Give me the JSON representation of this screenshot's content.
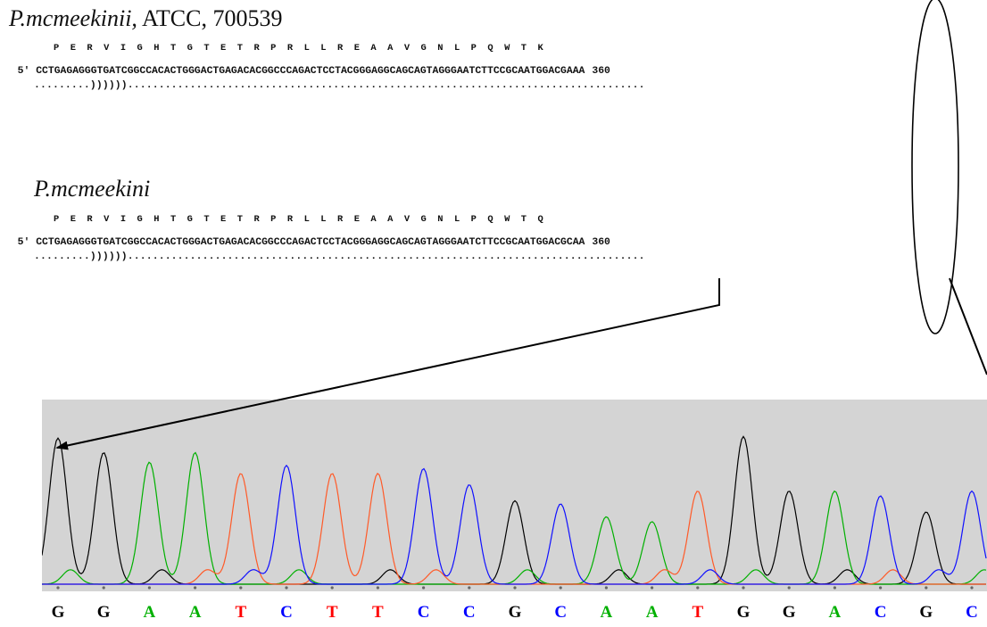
{
  "panel1": {
    "species": "P.mcmeekinii,",
    "strain": "ATCC, 700539",
    "amino_acids": "P  E  R  V  I  G  H  T  G  T  E  T  R  P  R  L  L  R  E  A  A  V  G  N  L  P  Q  W  T  K",
    "prefix": "5'",
    "sequence": "CCTGAGAGGGTGATCGGCCACACTGGGACTGAGACACGGCCCAGACTCCTACGGGAGGCAGCAGTAGGGAATCTTCCGCAATGGACGAAA",
    "position": "360",
    "structure": ".........))))))..................................................................................."
  },
  "panel2": {
    "species": "P.mcmeekini",
    "amino_acids": "P  E  R  V  I  G  H  T  G  T  E  T  R  P  R  L  L  R  E  A  A  V  G  N  L  P  Q  W  T  Q",
    "prefix": "5'",
    "sequence": "CCTGAGAGGGTGATCGGCCACACTGGGACTGAGACACGGCCCAGACTCCTACGGGAGGCAGCAGTAGGGAATCTTCCGCAATGGACGCAA",
    "position": "360",
    "structure": ".........))))))..................................................................................."
  },
  "base_calls": [
    "G",
    "G",
    "A",
    "A",
    "T",
    "C",
    "T",
    "T",
    "C",
    "C",
    "G",
    "C",
    "A",
    "A",
    "T",
    "G",
    "G",
    "A",
    "C",
    "G",
    "C"
  ],
  "base_colors": {
    "G": "#000000",
    "A": "#00b000",
    "T": "#ff0000",
    "C": "#0000ff"
  },
  "trace_colors": {
    "G": "#000000",
    "A": "#00b000",
    "T": "#ff5a28",
    "C": "#1010ff"
  },
  "peak_levels": [
    0.91,
    0.82,
    0.76,
    0.82,
    0.69,
    0.74,
    0.69,
    0.69,
    0.72,
    0.62,
    0.52,
    0.5,
    0.42,
    0.39,
    0.58,
    0.92,
    0.58,
    0.58,
    0.55,
    0.45,
    0.58
  ]
}
